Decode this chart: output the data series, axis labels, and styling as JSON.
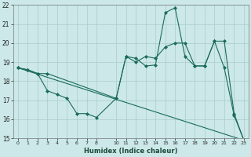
{
  "xlabel": "Humidex (Indice chaleur)",
  "xlim": [
    -0.5,
    23.5
  ],
  "ylim": [
    15,
    22
  ],
  "yticks": [
    15,
    16,
    17,
    18,
    19,
    20,
    21,
    22
  ],
  "xtick_positions": [
    0,
    1,
    2,
    3,
    4,
    5,
    6,
    7,
    8,
    10,
    11,
    12,
    13,
    14,
    15,
    16,
    17,
    18,
    19,
    20,
    21,
    22,
    23
  ],
  "xtick_labels": [
    "0",
    "1",
    "2",
    "3",
    "4",
    "5",
    "6",
    "7",
    "8",
    "10",
    "11",
    "12",
    "13",
    "14",
    "15",
    "16",
    "17",
    "18",
    "19",
    "20",
    "21",
    "22",
    "23"
  ],
  "bg_color": "#cce8e8",
  "grid_color": "#aacccc",
  "line_color": "#1a6b5a",
  "line1_x": [
    0,
    1,
    2,
    3,
    10,
    11,
    12,
    13,
    14,
    15,
    16,
    17,
    18,
    19,
    20,
    21,
    22,
    23
  ],
  "line1_y": [
    18.7,
    18.6,
    18.4,
    18.4,
    17.1,
    19.3,
    19.2,
    18.8,
    18.85,
    21.6,
    21.85,
    19.3,
    18.8,
    18.8,
    20.1,
    18.7,
    16.2,
    14.9
  ],
  "line2_x": [
    0,
    1,
    2,
    3,
    4,
    5,
    6,
    7,
    8,
    10,
    11,
    12,
    13,
    14,
    15,
    16,
    17,
    18,
    19,
    20,
    21,
    22,
    23
  ],
  "line2_y": [
    18.7,
    18.6,
    18.4,
    17.5,
    17.3,
    17.1,
    16.3,
    16.3,
    16.1,
    17.1,
    19.3,
    19.0,
    19.3,
    19.2,
    19.8,
    20.0,
    20.0,
    18.8,
    18.8,
    20.1,
    20.1,
    16.3,
    14.9
  ],
  "line3_x": [
    0,
    23
  ],
  "line3_y": [
    18.7,
    14.9
  ]
}
